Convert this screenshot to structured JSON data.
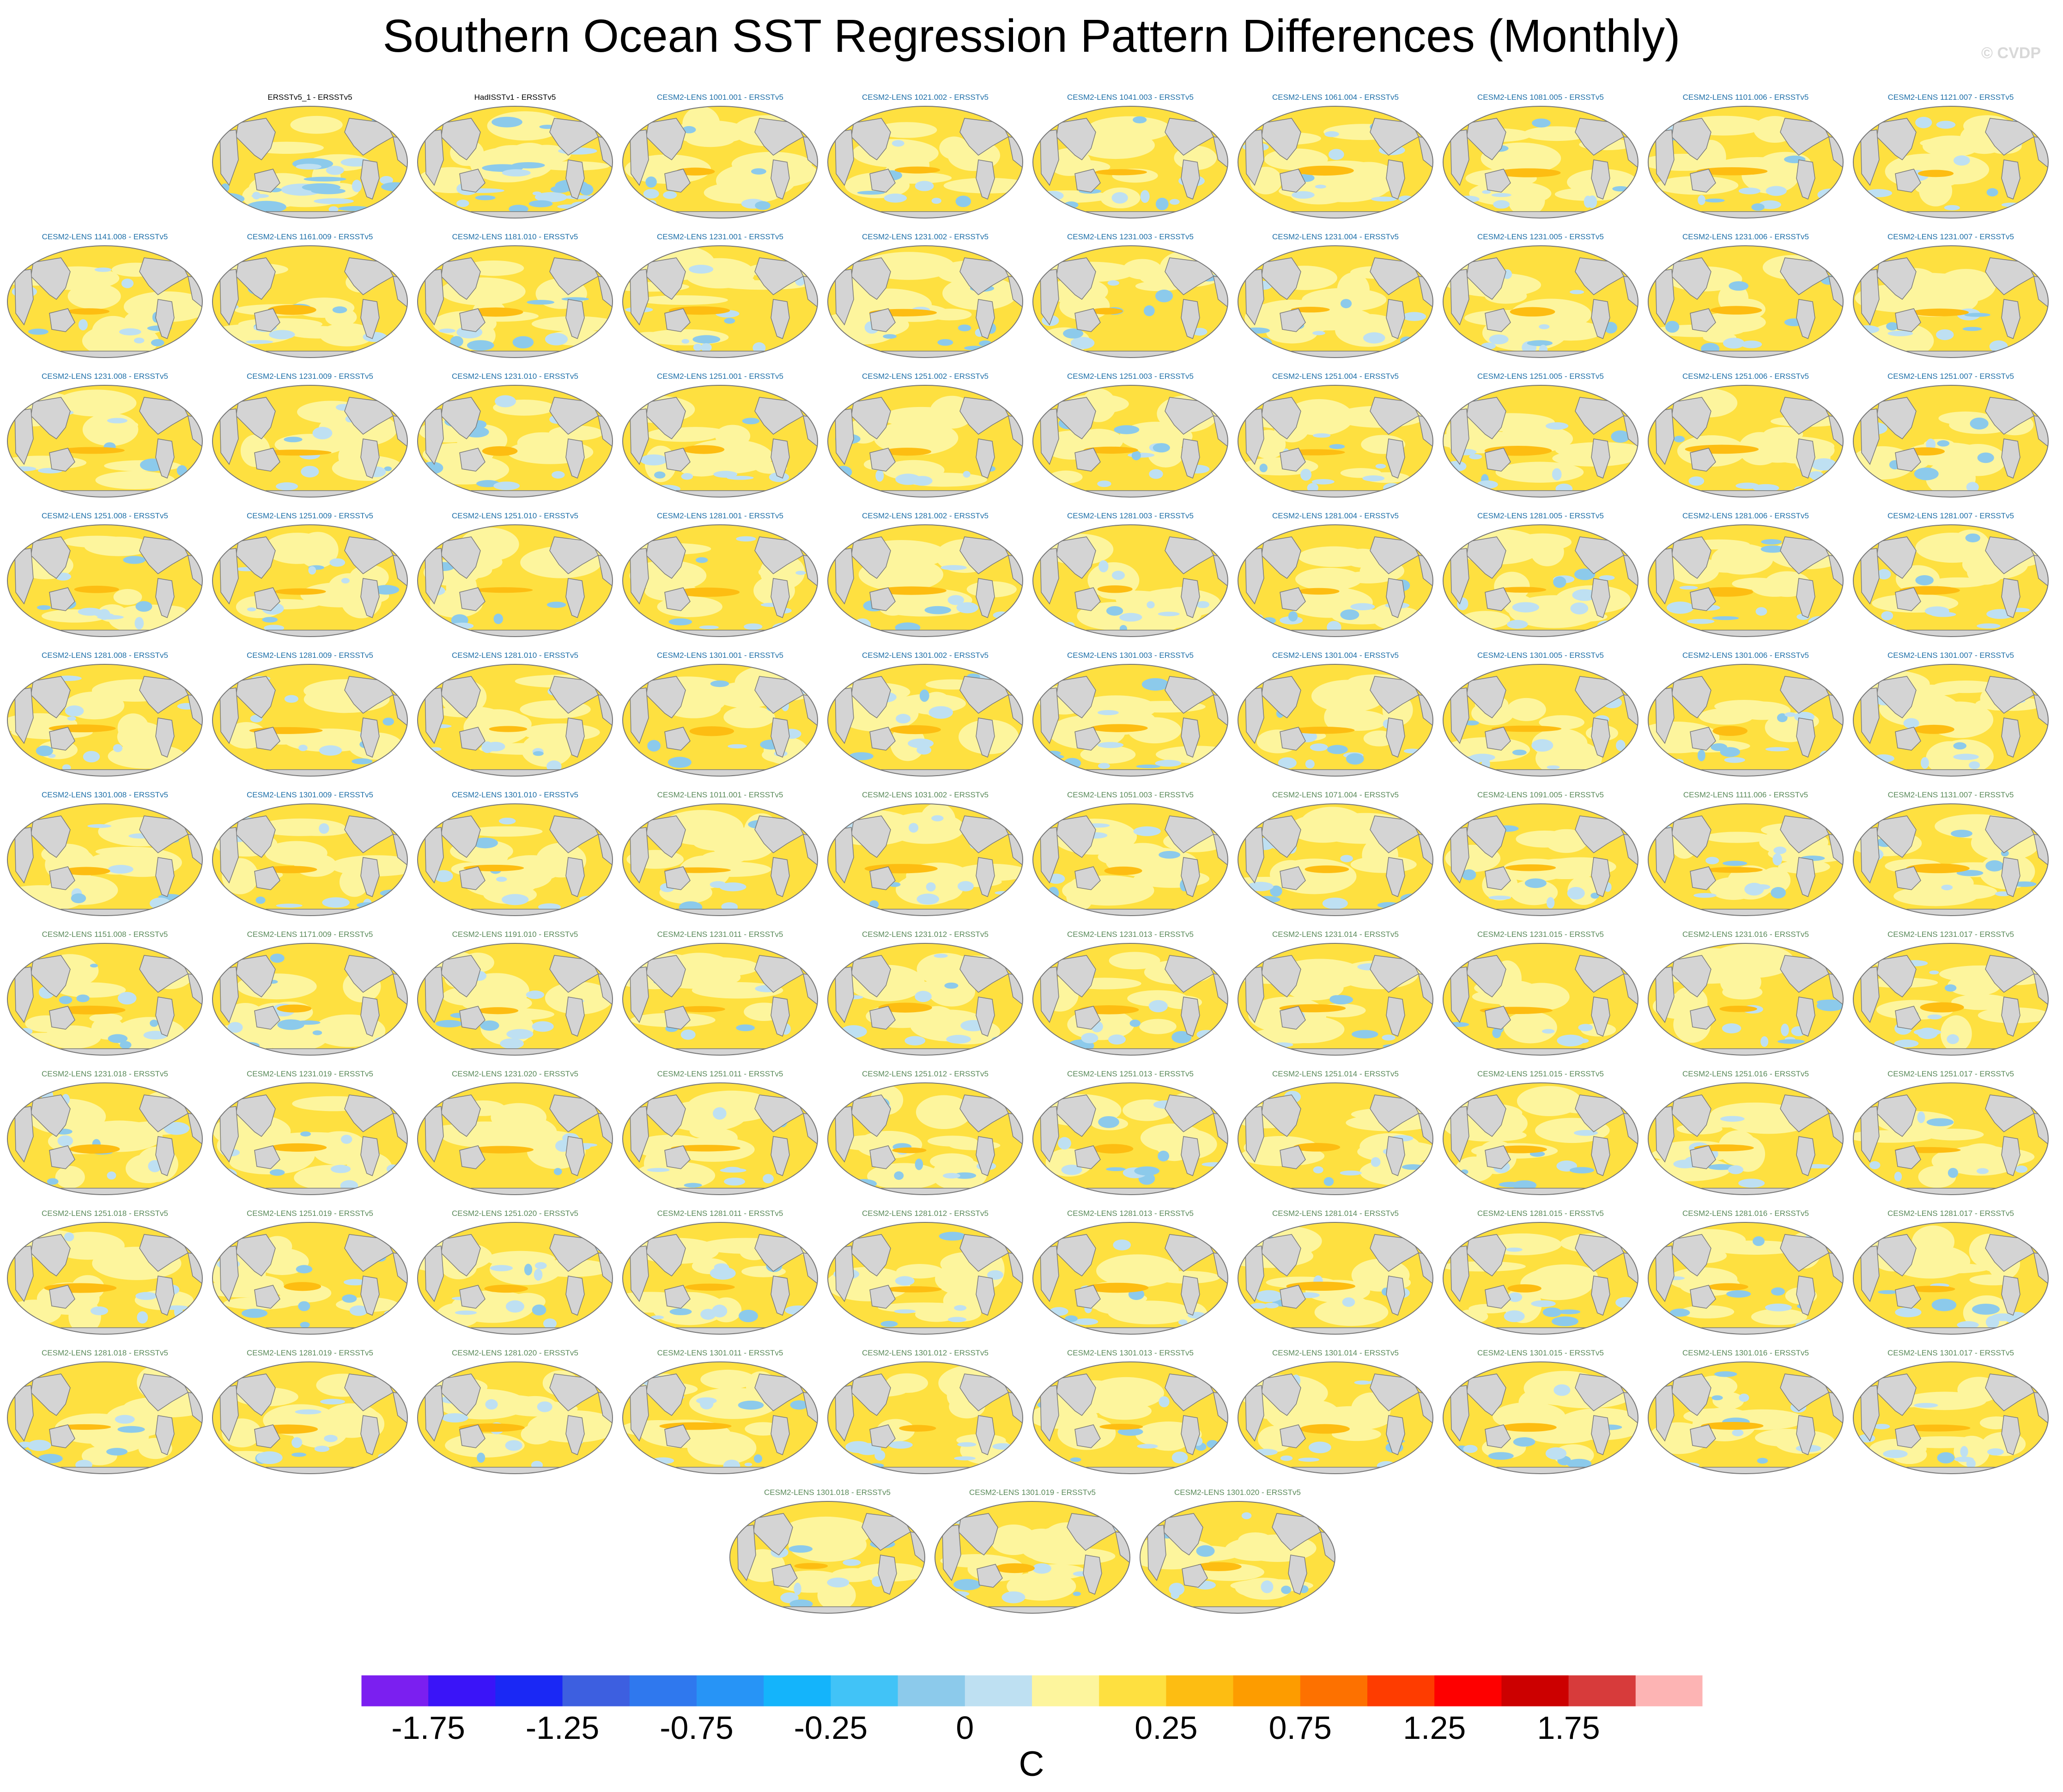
{
  "title": "Southern Ocean SST Regression Pattern Differences (Monthly)",
  "watermark": "© CVDP",
  "chart_data": {
    "type": "heatmap",
    "description_units": "C",
    "colorbar": {
      "unit_label": "C",
      "tick_labels": [
        "-1.75",
        "-1.25",
        "-0.75",
        "-0.25",
        "0",
        "0.25",
        "0.75",
        "1.25",
        "1.75"
      ],
      "colors": [
        "#7b1ff0",
        "#3a14f8",
        "#1a28f5",
        "#3d5fe0",
        "#2f78ee",
        "#2794f6",
        "#14b4fb",
        "#41c3f7",
        "#8ccaeb",
        "#bee0f2",
        "#fdf59d",
        "#fee040",
        "#fdbd12",
        "#fd9c00",
        "#fd7100",
        "#fe3c00",
        "#fe0000",
        "#cc0000",
        "#d73b3b",
        "#fdb4b4"
      ]
    },
    "panels": [
      {
        "label": "ERSSTv5_1 - ERSSTv5",
        "color": "#000000"
      },
      {
        "label": "HadISSTv1 - ERSSTv5",
        "color": "#000000"
      },
      {
        "label": "CESM2-LENS 1001.001 - ERSSTv5",
        "color": "#1e6fa8"
      },
      {
        "label": "CESM2-LENS 1021.002 - ERSSTv5",
        "color": "#1e6fa8"
      },
      {
        "label": "CESM2-LENS 1041.003 - ERSSTv5",
        "color": "#1e6fa8"
      },
      {
        "label": "CESM2-LENS 1061.004 - ERSSTv5",
        "color": "#1e6fa8"
      },
      {
        "label": "CESM2-LENS 1081.005 - ERSSTv5",
        "color": "#1e6fa8"
      },
      {
        "label": "CESM2-LENS 1101.006 - ERSSTv5",
        "color": "#1e6fa8"
      },
      {
        "label": "CESM2-LENS 1121.007 - ERSSTv5",
        "color": "#1e6fa8"
      },
      {
        "label": "CESM2-LENS 1141.008 - ERSSTv5",
        "color": "#1e6fa8"
      },
      {
        "label": "CESM2-LENS 1161.009 - ERSSTv5",
        "color": "#1e6fa8"
      },
      {
        "label": "CESM2-LENS 1181.010 - ERSSTv5",
        "color": "#1e6fa8"
      },
      {
        "label": "CESM2-LENS 1231.001 - ERSSTv5",
        "color": "#1e6fa8"
      },
      {
        "label": "CESM2-LENS 1231.002 - ERSSTv5",
        "color": "#1e6fa8"
      },
      {
        "label": "CESM2-LENS 1231.003 - ERSSTv5",
        "color": "#1e6fa8"
      },
      {
        "label": "CESM2-LENS 1231.004 - ERSSTv5",
        "color": "#1e6fa8"
      },
      {
        "label": "CESM2-LENS 1231.005 - ERSSTv5",
        "color": "#1e6fa8"
      },
      {
        "label": "CESM2-LENS 1231.006 - ERSSTv5",
        "color": "#1e6fa8"
      },
      {
        "label": "CESM2-LENS 1231.007 - ERSSTv5",
        "color": "#1e6fa8"
      },
      {
        "label": "CESM2-LENS 1231.008 - ERSSTv5",
        "color": "#1e6fa8"
      },
      {
        "label": "CESM2-LENS 1231.009 - ERSSTv5",
        "color": "#1e6fa8"
      },
      {
        "label": "CESM2-LENS 1231.010 - ERSSTv5",
        "color": "#1e6fa8"
      },
      {
        "label": "CESM2-LENS 1251.001 - ERSSTv5",
        "color": "#1e6fa8"
      },
      {
        "label": "CESM2-LENS 1251.002 - ERSSTv5",
        "color": "#1e6fa8"
      },
      {
        "label": "CESM2-LENS 1251.003 - ERSSTv5",
        "color": "#1e6fa8"
      },
      {
        "label": "CESM2-LENS 1251.004 - ERSSTv5",
        "color": "#1e6fa8"
      },
      {
        "label": "CESM2-LENS 1251.005 - ERSSTv5",
        "color": "#1e6fa8"
      },
      {
        "label": "CESM2-LENS 1251.006 - ERSSTv5",
        "color": "#1e6fa8"
      },
      {
        "label": "CESM2-LENS 1251.007 - ERSSTv5",
        "color": "#1e6fa8"
      },
      {
        "label": "CESM2-LENS 1251.008 - ERSSTv5",
        "color": "#1e6fa8"
      },
      {
        "label": "CESM2-LENS 1251.009 - ERSSTv5",
        "color": "#1e6fa8"
      },
      {
        "label": "CESM2-LENS 1251.010 - ERSSTv5",
        "color": "#1e6fa8"
      },
      {
        "label": "CESM2-LENS 1281.001 - ERSSTv5",
        "color": "#1e6fa8"
      },
      {
        "label": "CESM2-LENS 1281.002 - ERSSTv5",
        "color": "#1e6fa8"
      },
      {
        "label": "CESM2-LENS 1281.003 - ERSSTv5",
        "color": "#1e6fa8"
      },
      {
        "label": "CESM2-LENS 1281.004 - ERSSTv5",
        "color": "#1e6fa8"
      },
      {
        "label": "CESM2-LENS 1281.005 - ERSSTv5",
        "color": "#1e6fa8"
      },
      {
        "label": "CESM2-LENS 1281.006 - ERSSTv5",
        "color": "#1e6fa8"
      },
      {
        "label": "CESM2-LENS 1281.007 - ERSSTv5",
        "color": "#1e6fa8"
      },
      {
        "label": "CESM2-LENS 1281.008 - ERSSTv5",
        "color": "#1e6fa8"
      },
      {
        "label": "CESM2-LENS 1281.009 - ERSSTv5",
        "color": "#1e6fa8"
      },
      {
        "label": "CESM2-LENS 1281.010 - ERSSTv5",
        "color": "#1e6fa8"
      },
      {
        "label": "CESM2-LENS 1301.001 - ERSSTv5",
        "color": "#1e6fa8"
      },
      {
        "label": "CESM2-LENS 1301.002 - ERSSTv5",
        "color": "#1e6fa8"
      },
      {
        "label": "CESM2-LENS 1301.003 - ERSSTv5",
        "color": "#1e6fa8"
      },
      {
        "label": "CESM2-LENS 1301.004 - ERSSTv5",
        "color": "#1e6fa8"
      },
      {
        "label": "CESM2-LENS 1301.005 - ERSSTv5",
        "color": "#1e6fa8"
      },
      {
        "label": "CESM2-LENS 1301.006 - ERSSTv5",
        "color": "#1e6fa8"
      },
      {
        "label": "CESM2-LENS 1301.007 - ERSSTv5",
        "color": "#1e6fa8"
      },
      {
        "label": "CESM2-LENS 1301.008 - ERSSTv5",
        "color": "#1e6fa8"
      },
      {
        "label": "CESM2-LENS 1301.009 - ERSSTv5",
        "color": "#1e6fa8"
      },
      {
        "label": "CESM2-LENS 1301.010 - ERSSTv5",
        "color": "#1e6fa8"
      },
      {
        "label": "CESM2-LENS 1011.001 - ERSSTv5",
        "color": "#5a8a5a"
      },
      {
        "label": "CESM2-LENS 1031.002 - ERSSTv5",
        "color": "#5a8a5a"
      },
      {
        "label": "CESM2-LENS 1051.003 - ERSSTv5",
        "color": "#5a8a5a"
      },
      {
        "label": "CESM2-LENS 1071.004 - ERSSTv5",
        "color": "#5a8a5a"
      },
      {
        "label": "CESM2-LENS 1091.005 - ERSSTv5",
        "color": "#5a8a5a"
      },
      {
        "label": "CESM2-LENS 1111.006 - ERSSTv5",
        "color": "#5a8a5a"
      },
      {
        "label": "CESM2-LENS 1131.007 - ERSSTv5",
        "color": "#5a8a5a"
      },
      {
        "label": "CESM2-LENS 1151.008 - ERSSTv5",
        "color": "#5a8a5a"
      },
      {
        "label": "CESM2-LENS 1171.009 - ERSSTv5",
        "color": "#5a8a5a"
      },
      {
        "label": "CESM2-LENS 1191.010 - ERSSTv5",
        "color": "#5a8a5a"
      },
      {
        "label": "CESM2-LENS 1231.011 - ERSSTv5",
        "color": "#5a8a5a"
      },
      {
        "label": "CESM2-LENS 1231.012 - ERSSTv5",
        "color": "#5a8a5a"
      },
      {
        "label": "CESM2-LENS 1231.013 - ERSSTv5",
        "color": "#5a8a5a"
      },
      {
        "label": "CESM2-LENS 1231.014 - ERSSTv5",
        "color": "#5a8a5a"
      },
      {
        "label": "CESM2-LENS 1231.015 - ERSSTv5",
        "color": "#5a8a5a"
      },
      {
        "label": "CESM2-LENS 1231.016 - ERSSTv5",
        "color": "#5a8a5a"
      },
      {
        "label": "CESM2-LENS 1231.017 - ERSSTv5",
        "color": "#5a8a5a"
      },
      {
        "label": "CESM2-LENS 1231.018 - ERSSTv5",
        "color": "#5a8a5a"
      },
      {
        "label": "CESM2-LENS 1231.019 - ERSSTv5",
        "color": "#5a8a5a"
      },
      {
        "label": "CESM2-LENS 1231.020 - ERSSTv5",
        "color": "#5a8a5a"
      },
      {
        "label": "CESM2-LENS 1251.011 - ERSSTv5",
        "color": "#5a8a5a"
      },
      {
        "label": "CESM2-LENS 1251.012 - ERSSTv5",
        "color": "#5a8a5a"
      },
      {
        "label": "CESM2-LENS 1251.013 - ERSSTv5",
        "color": "#5a8a5a"
      },
      {
        "label": "CESM2-LENS 1251.014 - ERSSTv5",
        "color": "#5a8a5a"
      },
      {
        "label": "CESM2-LENS 1251.015 - ERSSTv5",
        "color": "#5a8a5a"
      },
      {
        "label": "CESM2-LENS 1251.016 - ERSSTv5",
        "color": "#5a8a5a"
      },
      {
        "label": "CESM2-LENS 1251.017 - ERSSTv5",
        "color": "#5a8a5a"
      },
      {
        "label": "CESM2-LENS 1251.018 - ERSSTv5",
        "color": "#5a8a5a"
      },
      {
        "label": "CESM2-LENS 1251.019 - ERSSTv5",
        "color": "#5a8a5a"
      },
      {
        "label": "CESM2-LENS 1251.020 - ERSSTv5",
        "color": "#5a8a5a"
      },
      {
        "label": "CESM2-LENS 1281.011 - ERSSTv5",
        "color": "#5a8a5a"
      },
      {
        "label": "CESM2-LENS 1281.012 - ERSSTv5",
        "color": "#5a8a5a"
      },
      {
        "label": "CESM2-LENS 1281.013 - ERSSTv5",
        "color": "#5a8a5a"
      },
      {
        "label": "CESM2-LENS 1281.014 - ERSSTv5",
        "color": "#5a8a5a"
      },
      {
        "label": "CESM2-LENS 1281.015 - ERSSTv5",
        "color": "#5a8a5a"
      },
      {
        "label": "CESM2-LENS 1281.016 - ERSSTv5",
        "color": "#5a8a5a"
      },
      {
        "label": "CESM2-LENS 1281.017 - ERSSTv5",
        "color": "#5a8a5a"
      },
      {
        "label": "CESM2-LENS 1281.018 - ERSSTv5",
        "color": "#5a8a5a"
      },
      {
        "label": "CESM2-LENS 1281.019 - ERSSTv5",
        "color": "#5a8a5a"
      },
      {
        "label": "CESM2-LENS 1281.020 - ERSSTv5",
        "color": "#5a8a5a"
      },
      {
        "label": "CESM2-LENS 1301.011 - ERSSTv5",
        "color": "#5a8a5a"
      },
      {
        "label": "CESM2-LENS 1301.012 - ERSSTv5",
        "color": "#5a8a5a"
      },
      {
        "label": "CESM2-LENS 1301.013 - ERSSTv5",
        "color": "#5a8a5a"
      },
      {
        "label": "CESM2-LENS 1301.014 - ERSSTv5",
        "color": "#5a8a5a"
      },
      {
        "label": "CESM2-LENS 1301.015 - ERSSTv5",
        "color": "#5a8a5a"
      },
      {
        "label": "CESM2-LENS 1301.016 - ERSSTv5",
        "color": "#5a8a5a"
      },
      {
        "label": "CESM2-LENS 1301.017 - ERSSTv5",
        "color": "#5a8a5a"
      },
      {
        "label": "CESM2-LENS 1301.018 - ERSSTv5",
        "color": "#5a8a5a"
      },
      {
        "label": "CESM2-LENS 1301.019 - ERSSTv5",
        "color": "#5a8a5a"
      },
      {
        "label": "CESM2-LENS 1301.020 - ERSSTv5",
        "color": "#5a8a5a"
      }
    ]
  }
}
